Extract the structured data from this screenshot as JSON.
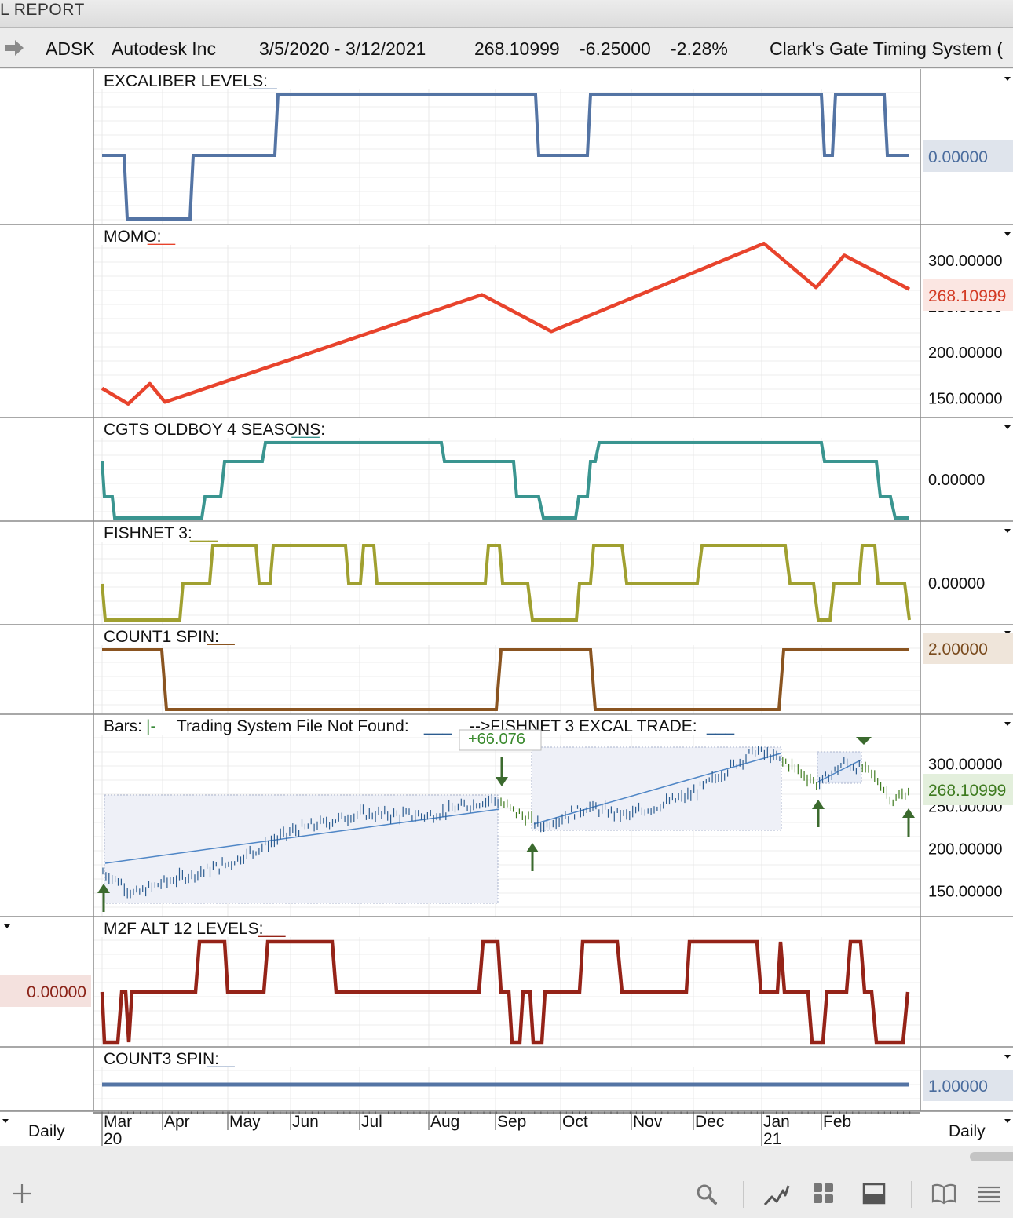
{
  "window": {
    "title": "L REPORT"
  },
  "header": {
    "symbol": "ADSK",
    "company": "Autodesk Inc",
    "date_range": "3/5/2020 - 3/12/2021",
    "last_price": "268.10999",
    "change": "-6.25000",
    "change_pct": "-2.28%",
    "system_name": "Clark's Gate Timing System (",
    "nav_icon": "right-arrow-icon"
  },
  "colors": {
    "excaliber": "#5474a4",
    "momo": "#e8432c",
    "oldboy": "#3a9590",
    "fishnet": "#a0a030",
    "count1": "#8a5420",
    "bars": "#2c5c90",
    "m2f": "#952318",
    "count3": "#5474a4",
    "signal_arrow": "#3b6a2e",
    "trend_line": "#4f86c6"
  },
  "panels": [
    {
      "id": "excaliber",
      "label": "EXCALIBER LEVELS:",
      "label_suffix": "___",
      "suffix_color": "#5474a4",
      "badge": "0.00000",
      "badge_side": "right"
    },
    {
      "id": "momo",
      "label": "MOMO:",
      "label_suffix": "___",
      "suffix_color": "#e8432c",
      "badge": "268.10999",
      "badge_side": "right",
      "axis_ticks": [
        "300.00000",
        "250.00000",
        "200.00000",
        "150.00000"
      ]
    },
    {
      "id": "oldboy",
      "label": "CGTS OLDBOY 4 SEASONS:",
      "label_suffix": "___",
      "suffix_color": "#3a9590",
      "badge": "0.00000",
      "badge_side": "right"
    },
    {
      "id": "fishnet",
      "label": "FISHNET 3:",
      "label_suffix": "___",
      "suffix_color": "#a0a030",
      "badge": "0.00000",
      "badge_side": "right"
    },
    {
      "id": "count1",
      "label": "COUNT1 SPIN:",
      "label_suffix": "___",
      "suffix_color": "#8a5420",
      "badge": "2.00000",
      "badge_side": "right"
    },
    {
      "id": "bars",
      "label": "Bars:",
      "label_marker": "|-",
      "label2": "Trading System File Not Found:",
      "label3": "-->FISHNET 3 EXCAL TRADE:",
      "label_suffix": "___",
      "suffix_color": "#2c5c90",
      "badge": "268.10999",
      "badge_side": "right",
      "axis_ticks": [
        "300.00000",
        "250.00000",
        "200.00000",
        "150.00000"
      ],
      "trade_annotation": "+66.076"
    },
    {
      "id": "m2f",
      "label": "M2F ALT 12 LEVELS:",
      "label_suffix": "___",
      "suffix_color": "#952318",
      "badge": "0.00000",
      "badge_side": "left"
    },
    {
      "id": "count3",
      "label": "COUNT3 SPIN:",
      "label_suffix": "___",
      "suffix_color": "#5474a4",
      "badge": "1.00000",
      "badge_side": "right"
    }
  ],
  "time_axis": {
    "months": [
      "Mar",
      "Apr",
      "May",
      "Jun",
      "Jul",
      "Aug",
      "Sep",
      "Oct",
      "Nov",
      "Dec",
      "Jan",
      "Feb"
    ],
    "years": [
      {
        "month": "Mar",
        "label": "20"
      },
      {
        "month": "Jan",
        "label": "21"
      }
    ],
    "period_left": "Daily",
    "period_right": "Daily"
  },
  "chart_data": [
    {
      "type": "line",
      "panel": "excaliber",
      "note": "step levels, relative",
      "x": [
        0,
        4,
        10,
        24,
        56,
        64,
        109,
        115,
        122,
        128
      ],
      "y": [
        0,
        -1,
        0,
        1,
        0,
        1,
        0,
        1,
        0,
        0
      ]
    },
    {
      "type": "line",
      "panel": "momo",
      "x": [
        "2020-03-05",
        "2020-03-17",
        "2020-03-27",
        "2020-04-03",
        "2020-08-27",
        "2020-09-28",
        "2021-01-04",
        "2021-01-28",
        "2021-02-10",
        "2021-03-12"
      ],
      "y": [
        160,
        143,
        165,
        145,
        262,
        222,
        318,
        270,
        305,
        268
      ],
      "ylim": [
        135,
        325
      ]
    },
    {
      "type": "line",
      "panel": "oldboy",
      "note": "step levels, relative",
      "x": [
        0,
        2,
        18,
        22,
        31,
        61,
        74,
        79,
        84,
        87,
        88,
        128
      ],
      "y": [
        1,
        -1,
        -2,
        -1,
        0,
        1,
        0,
        -1,
        -2,
        -1,
        0,
        0
      ]
    },
    {
      "type": "line",
      "panel": "fishnet",
      "note": "step levels, relative",
      "y_levels": [
        -1,
        0,
        1
      ]
    },
    {
      "type": "line",
      "panel": "count1",
      "note": "step levels",
      "y_levels": [
        1,
        2
      ]
    },
    {
      "type": "line",
      "panel": "bars",
      "series_name": "ADSK daily close",
      "x": [
        "2020-03-05",
        "2020-03-13",
        "2020-03-20",
        "2020-04-01",
        "2020-05-01",
        "2020-06-01",
        "2020-07-01",
        "2020-08-03",
        "2020-09-01",
        "2020-09-23",
        "2020-10-15",
        "2020-11-02",
        "2020-12-01",
        "2020-12-31",
        "2021-01-15",
        "2021-01-29",
        "2021-02-10",
        "2021-02-22",
        "2021-03-05",
        "2021-03-12"
      ],
      "y": [
        172,
        160,
        145,
        158,
        180,
        220,
        240,
        238,
        258,
        226,
        248,
        238,
        262,
        315,
        300,
        275,
        300,
        290,
        255,
        268
      ],
      "ylim": [
        130,
        330
      ]
    },
    {
      "type": "line",
      "panel": "m2f",
      "note": "step levels, relative",
      "y_levels": [
        -1,
        0,
        1
      ]
    },
    {
      "type": "line",
      "panel": "count3",
      "x": [
        0,
        128
      ],
      "y": [
        1,
        1
      ]
    }
  ],
  "toolbar": {
    "icons": [
      "add-icon",
      "search-icon",
      "chart-line-icon",
      "grid-icon",
      "panel-icon",
      "book-icon",
      "menu-icon"
    ]
  }
}
